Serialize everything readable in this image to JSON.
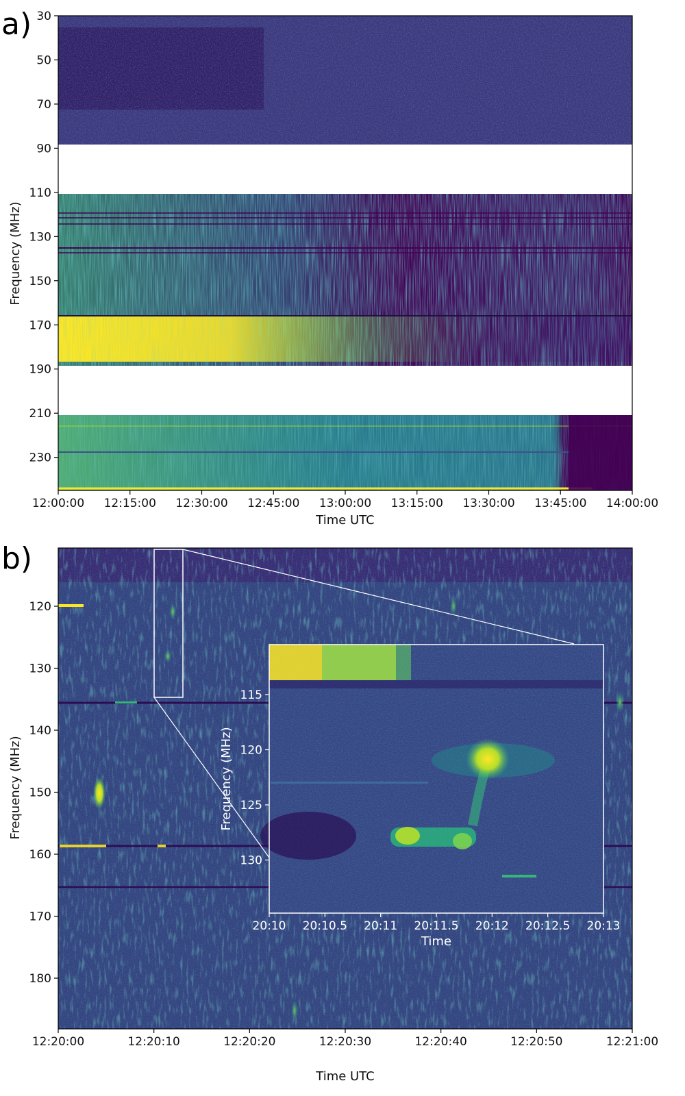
{
  "chart_data": [
    {
      "panel": "a)",
      "type": "heatmap",
      "colormap": "viridis",
      "xlabel": "Time UTC",
      "ylabel": "Frequency (MHz)",
      "x_ticks": [
        "12:00:00",
        "12:15:00",
        "12:30:00",
        "12:45:00",
        "13:00:00",
        "13:15:00",
        "13:30:00",
        "13:45:00",
        "14:00:00"
      ],
      "y_ticks": [
        30,
        50,
        70,
        90,
        110,
        130,
        150,
        170,
        190,
        210,
        230
      ],
      "ylim": [
        245,
        30
      ],
      "xlim": [
        "12:00:00",
        "14:00:00"
      ],
      "data_gaps_mhz": [
        [
          88,
          110
        ],
        [
          188,
          210
        ]
      ],
      "bands": [
        {
          "range_mhz": [
            30,
            88
          ],
          "intensity": "low"
        },
        {
          "range_mhz": [
            110,
            188
          ],
          "intensity": "high, bright band near 165-185 MHz before 12:45"
        },
        {
          "range_mhz": [
            210,
            245
          ],
          "intensity": "medium, fading after 13:45"
        }
      ]
    },
    {
      "panel": "b)",
      "type": "heatmap",
      "colormap": "viridis",
      "xlabel": "Time UTC",
      "ylabel": "Frequency (MHz)",
      "x_ticks": [
        "12:20:00",
        "12:20:10",
        "12:20:20",
        "12:20:30",
        "12:20:40",
        "12:20:50",
        "12:21:00"
      ],
      "y_ticks": [
        120,
        130,
        140,
        150,
        160,
        170,
        180
      ],
      "ylim": [
        189,
        111
      ],
      "xlim": [
        "12:20:00",
        "12:21:00"
      ],
      "zoom_box": {
        "x_range": [
          "12:20:10",
          "12:20:13"
        ],
        "y_range_mhz": [
          111,
          135
        ]
      },
      "inset": {
        "xlabel": "Time",
        "ylabel": "Frequency (MHz)",
        "x_ticks": [
          "20:10",
          "20:10.5",
          "20:11",
          "20:11.5",
          "20:12",
          "20:12.5",
          "20:13"
        ],
        "y_ticks": [
          115,
          120,
          125,
          130
        ],
        "features": [
          {
            "name": "burst",
            "time": "20:11.95",
            "freq_mhz": 120.5
          },
          {
            "name": "drift",
            "time_range": [
              "20:11.3",
              "20:11.8"
            ],
            "freq_mhz": 127.5
          }
        ]
      }
    }
  ],
  "panel_a_label": "a)",
  "panel_b_label": "b)"
}
